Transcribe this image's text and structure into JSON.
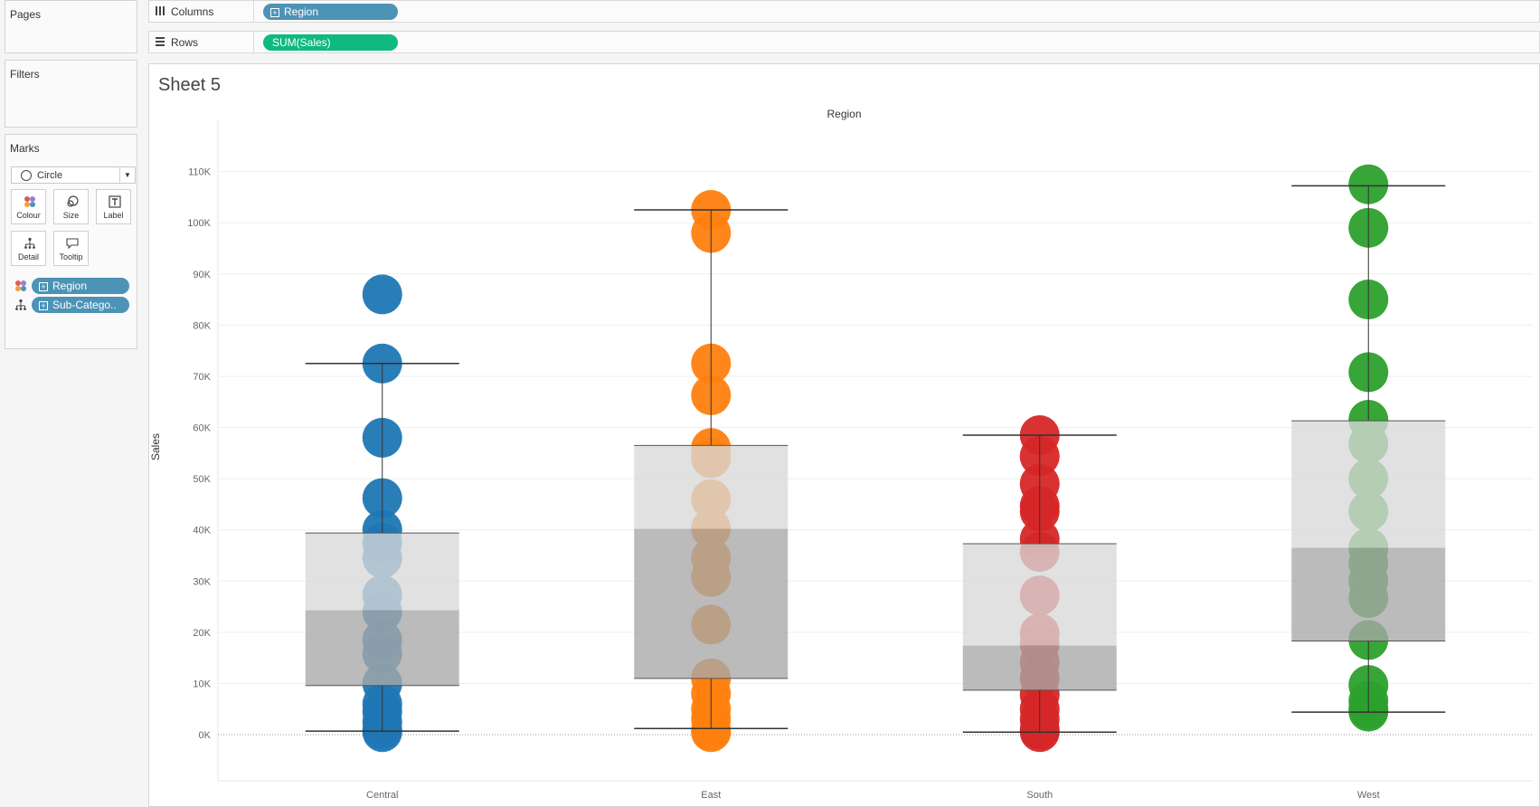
{
  "left_panel": {
    "pages_title": "Pages",
    "filters_title": "Filters",
    "marks_title": "Marks",
    "mark_type": "Circle",
    "buttons": {
      "colour": "Colour",
      "size": "Size",
      "label": "Label",
      "detail": "Detail",
      "tooltip": "Tooltip"
    },
    "fields": [
      {
        "kind": "colour",
        "label": "Region"
      },
      {
        "kind": "detail",
        "label": "Sub-Catego.."
      }
    ]
  },
  "shelves": {
    "columns_label": "Columns",
    "columns_pill": "Region",
    "rows_label": "Rows",
    "rows_pill": "SUM(Sales)"
  },
  "sheet": {
    "title": "Sheet 5",
    "column_header": "Region"
  },
  "chart_data": {
    "type": "scatter",
    "title": "Sheet 5",
    "xlabel": "Region",
    "ylabel": "Sales",
    "categories": [
      "Central",
      "East",
      "South",
      "West"
    ],
    "yticks": [
      "0K",
      "10K",
      "20K",
      "30K",
      "40K",
      "50K",
      "60K",
      "70K",
      "80K",
      "90K",
      "100K",
      "110K"
    ],
    "ylim": [
      -9000,
      120000
    ],
    "colors": {
      "Central": "#1f77b4",
      "East": "#ff7f0e",
      "South": "#d62728",
      "West": "#2ca02c"
    },
    "series": [
      {
        "name": "Central",
        "values": [
          86000,
          72500,
          58000,
          46200,
          40000,
          37500,
          34500,
          27300,
          24000,
          18500,
          15800,
          10000,
          6000,
          4500,
          2500,
          500,
          1000
        ]
      },
      {
        "name": "East",
        "values": [
          102500,
          98000,
          72500,
          66300,
          56000,
          54000,
          46000,
          40300,
          34500,
          30800,
          21500,
          11000,
          8000,
          5000,
          3000,
          800,
          500
        ]
      },
      {
        "name": "South",
        "values": [
          58500,
          54400,
          49000,
          44700,
          43600,
          38200,
          35700,
          27200,
          19800,
          17700,
          14200,
          11100,
          7800,
          5000,
          3000,
          1000,
          500
        ]
      },
      {
        "name": "West",
        "values": [
          107500,
          99000,
          85000,
          70800,
          61500,
          56800,
          50000,
          43600,
          36500,
          33500,
          30000,
          26700,
          18500,
          9700,
          6600,
          5000,
          4500
        ]
      }
    ],
    "boxplots": [
      {
        "name": "Central",
        "whisker_low": 700,
        "q1": 9600,
        "median": 24300,
        "q3": 39400,
        "whisker_high": 72500
      },
      {
        "name": "East",
        "whisker_low": 1200,
        "q1": 11000,
        "median": 40200,
        "q3": 56500,
        "whisker_high": 102500
      },
      {
        "name": "South",
        "whisker_low": 500,
        "q1": 8700,
        "median": 17400,
        "q3": 37300,
        "whisker_high": 58500
      },
      {
        "name": "West",
        "whisker_low": 4400,
        "q1": 18300,
        "median": 36500,
        "q3": 61300,
        "whisker_high": 107200
      }
    ]
  }
}
